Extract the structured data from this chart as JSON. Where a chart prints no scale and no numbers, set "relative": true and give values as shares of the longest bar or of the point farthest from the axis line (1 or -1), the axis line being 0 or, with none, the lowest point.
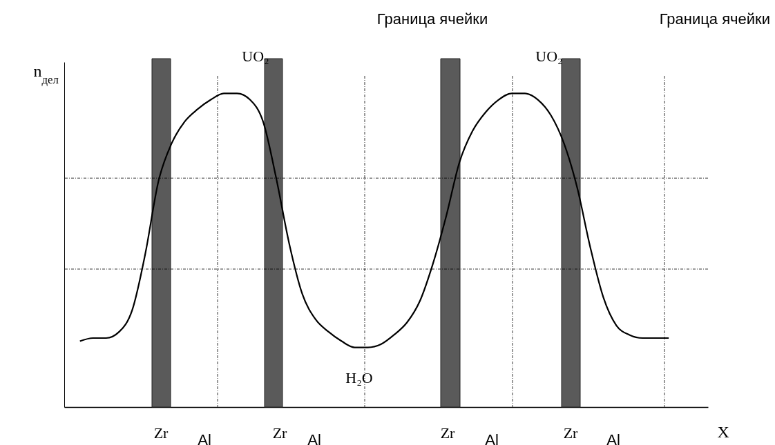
{
  "chart_data": {
    "type": "line",
    "relative": true,
    "ylabel": "n$_{дел}$",
    "xlabel": "X",
    "categories": [
      null,
      null,
      null,
      null,
      null,
      null,
      null,
      null,
      null,
      null,
      null,
      null,
      null,
      null,
      null,
      null,
      null,
      null,
      null,
      null,
      null,
      null,
      null,
      null,
      null,
      null,
      null,
      null,
      null,
      null,
      null,
      null,
      null,
      null,
      null,
      null,
      null,
      null,
      null,
      null,
      null,
      null,
      null,
      null,
      null,
      null
    ],
    "values": [
      0.21,
      0.22,
      0.22,
      0.24,
      0.31,
      0.49,
      0.72,
      0.84,
      0.91,
      0.95,
      0.98,
      1.0,
      1.0,
      0.98,
      0.91,
      0.73,
      0.52,
      0.36,
      0.28,
      0.24,
      0.21,
      0.19,
      0.19,
      0.2,
      0.23,
      0.27,
      0.34,
      0.46,
      0.61,
      0.78,
      0.88,
      0.94,
      0.98,
      1.0,
      1.0,
      0.98,
      0.93,
      0.84,
      0.7,
      0.51,
      0.35,
      0.26,
      0.23,
      0.22,
      0.22,
      0.22
    ],
    "color": "#000000",
    "grid": false,
    "ref_lines": [
      {
        "axis": "y",
        "value": 0.73,
        "line_style": "dotted"
      },
      {
        "axis": "y",
        "value": 0.44,
        "line_style": "dotted"
      }
    ],
    "annotations": [
      "UO₂",
      "Граница ячейки",
      "UO₂",
      "Граница ячейки",
      "H₂O",
      "Zr",
      "Al",
      "Zr",
      "Al",
      "Zr",
      "Al",
      "Zr",
      "Al"
    ]
  }
}
